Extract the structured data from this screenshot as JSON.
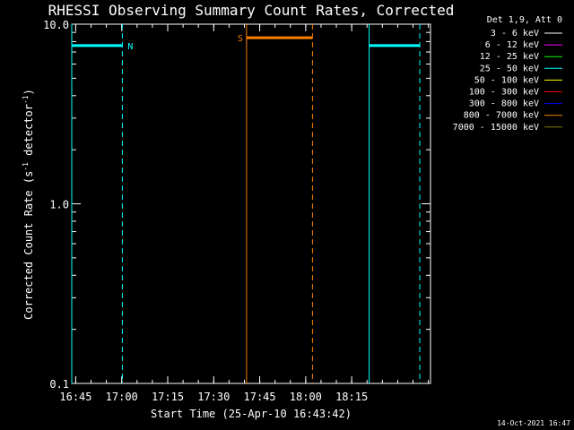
{
  "chart_data": {
    "type": "line",
    "title": "RHESSI Observing Summary Count Rates, Corrected",
    "xlabel": "Start Time (25-Apr-10 16:43:42)",
    "ylabel_main": "Corrected Count Rate (s",
    "ylabel_sup1": "-1",
    "ylabel_mid": " detector",
    "ylabel_sup2": "-1",
    "ylabel_end": ")",
    "yscale": "log",
    "ylim": [
      0.1,
      10.0
    ],
    "xlim_minutes_from_start": [
      0,
      117
    ],
    "xticks": [
      {
        "label": "16:45",
        "minute": 1.3
      },
      {
        "label": "17:00",
        "minute": 16.3
      },
      {
        "label": "17:15",
        "minute": 31.3
      },
      {
        "label": "17:30",
        "minute": 46.3
      },
      {
        "label": "17:45",
        "minute": 61.3
      },
      {
        "label": "18:00",
        "minute": 76.3
      },
      {
        "label": "18:15",
        "minute": 91.3
      }
    ],
    "yticks": [
      {
        "label": "10.0",
        "value": 10.0
      },
      {
        "label": "1.0",
        "value": 1.0
      },
      {
        "label": "0.1",
        "value": 0.1
      }
    ],
    "legend": {
      "header": "Det 1,9, Att 0",
      "entries": [
        {
          "label": "3 - 6 keV",
          "color": "#ffffff"
        },
        {
          "label": "6 - 12 keV",
          "color": "#ff00ff"
        },
        {
          "label": "12 - 25 keV",
          "color": "#00ff00"
        },
        {
          "label": "25 - 50 keV",
          "color": "#00ffff"
        },
        {
          "label": "50 - 100 keV",
          "color": "#ffff00"
        },
        {
          "label": "100 - 300 keV",
          "color": "#ff0000"
        },
        {
          "label": "300 - 800 keV",
          "color": "#0000ff"
        },
        {
          "label": "800 - 7000 keV",
          "color": "#ff7f00"
        },
        {
          "label": "7000 - 15000 keV",
          "color": "#7f7f00"
        }
      ]
    },
    "series": [
      {
        "name": "N",
        "color": "#00ffff",
        "kind": "flag",
        "start": 0,
        "end": 16.5,
        "y": 7.6
      },
      {
        "name": "S",
        "color": "#ff7f00",
        "kind": "flag",
        "start": 57,
        "end": 78.5,
        "y": 8.4
      },
      {
        "color": "#00ffff",
        "kind": "flag",
        "start": 97,
        "end": 113.5,
        "y": 7.6
      }
    ],
    "vlines": [
      {
        "minute": 0,
        "color": "#00ffff",
        "style": "solid"
      },
      {
        "minute": 16.5,
        "color": "#00ffff",
        "style": "dashed"
      },
      {
        "minute": 57,
        "color": "#ff7f00",
        "style": "solid"
      },
      {
        "minute": 78.5,
        "color": "#ff7f00",
        "style": "dashed"
      },
      {
        "minute": 97,
        "color": "#00ffff",
        "style": "solid"
      },
      {
        "minute": 113.5,
        "color": "#00ffff",
        "style": "dashed"
      }
    ]
  },
  "timestamp": "14-Oct-2021 16:47"
}
